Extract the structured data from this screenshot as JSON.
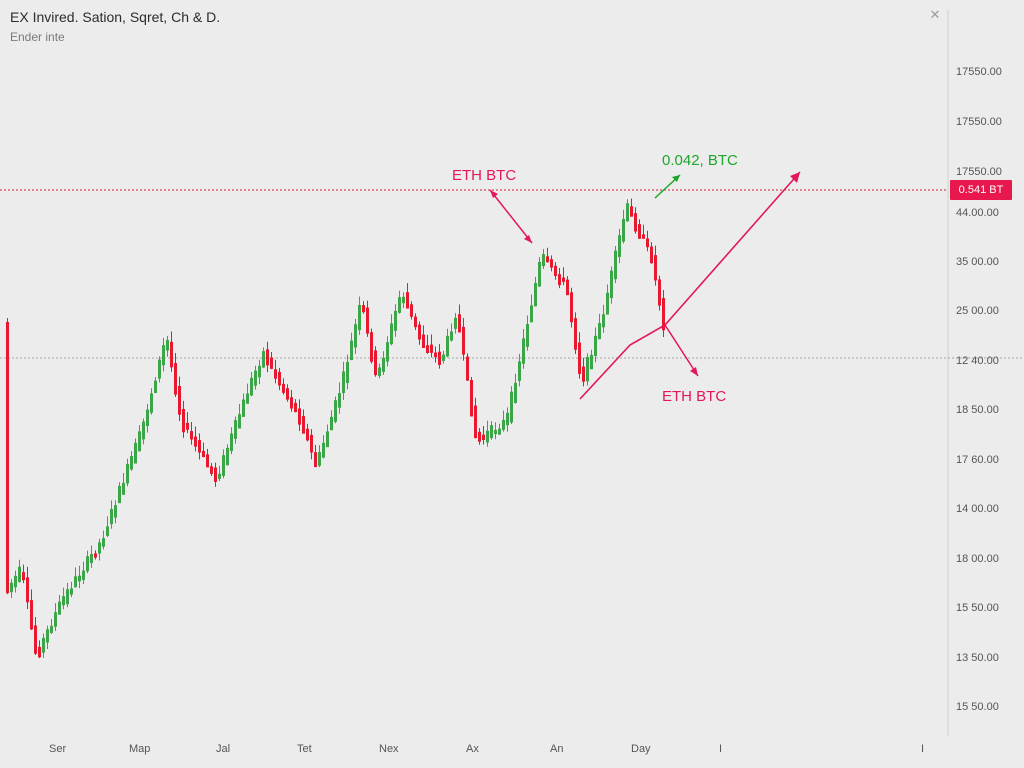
{
  "header": {
    "title": "EX Invired. Sation, Sqret, Ch & D.",
    "subtitle": "Ender inte",
    "close_icon": "close-icon"
  },
  "price_badge": {
    "label": "0.541 BT",
    "color": "#e8184e"
  },
  "chart_data": {
    "type": "candlestick",
    "title": "",
    "xlabel": "",
    "ylabel": "",
    "x_ticks": [
      "Ser",
      "Map",
      "Jal",
      "Tet",
      "Nex",
      "Ax",
      "An",
      "Day",
      "I",
      "I"
    ],
    "y_ticks": [
      "17550.00",
      "17550.00",
      "17550.00",
      "44.00.00",
      "35 00.00",
      "25 00.00",
      "12 40.00",
      "18 50.00",
      "17 60.00",
      "14 00.00",
      "18 00.00",
      "15 50.00",
      "13 50.00",
      "15 50.00"
    ],
    "grid": false,
    "colors": {
      "up": "#3aa648",
      "down": "#e8182f",
      "annotation_red": "#e3175a",
      "annotation_green": "#1ea52b"
    },
    "candles_sampled": [
      [
        1,
        0
      ],
      [
        2,
        0
      ],
      [
        3,
        -1
      ],
      [
        4,
        -1
      ],
      [
        5,
        -1
      ],
      [
        6,
        1
      ],
      [
        7,
        1
      ],
      [
        8,
        1
      ],
      [
        9,
        1
      ],
      [
        10,
        1
      ],
      [
        11,
        1
      ],
      [
        12,
        1
      ],
      [
        13,
        1
      ],
      [
        14,
        1
      ],
      [
        15,
        1
      ],
      [
        16,
        1
      ],
      [
        17,
        1
      ],
      [
        18,
        -1
      ],
      [
        19,
        -1
      ],
      [
        20,
        -1
      ],
      [
        21,
        -1
      ],
      [
        22,
        -1
      ],
      [
        23,
        1
      ],
      [
        24,
        1
      ],
      [
        25,
        1
      ],
      [
        26,
        1
      ],
      [
        27,
        -1
      ],
      [
        28,
        -1
      ],
      [
        29,
        -1
      ],
      [
        30,
        -1
      ],
      [
        31,
        1
      ],
      [
        32,
        1
      ],
      [
        33,
        1
      ],
      [
        34,
        1
      ],
      [
        35,
        1
      ],
      [
        36,
        -1
      ],
      [
        37,
        -1
      ],
      [
        38,
        -1
      ],
      [
        39,
        1
      ],
      [
        40,
        1
      ],
      [
        41,
        1
      ],
      [
        42,
        -1
      ],
      [
        43,
        -1
      ],
      [
        44,
        -1
      ],
      [
        45,
        -1
      ],
      [
        46,
        1
      ],
      [
        47,
        1
      ],
      [
        48,
        1
      ],
      [
        49,
        1
      ],
      [
        50,
        1
      ]
    ],
    "annotations": [
      {
        "text": "ETH BTC",
        "color": "#e3175a"
      },
      {
        "text": "0.042, BTC",
        "color": "#1ea52b"
      },
      {
        "text": "ETH BTC",
        "color": "#e3175a"
      }
    ],
    "reference_lines": [
      {
        "style": "dotted",
        "color": "#d0202f"
      },
      {
        "style": "dotted",
        "color": "#9a9a9a"
      }
    ]
  }
}
